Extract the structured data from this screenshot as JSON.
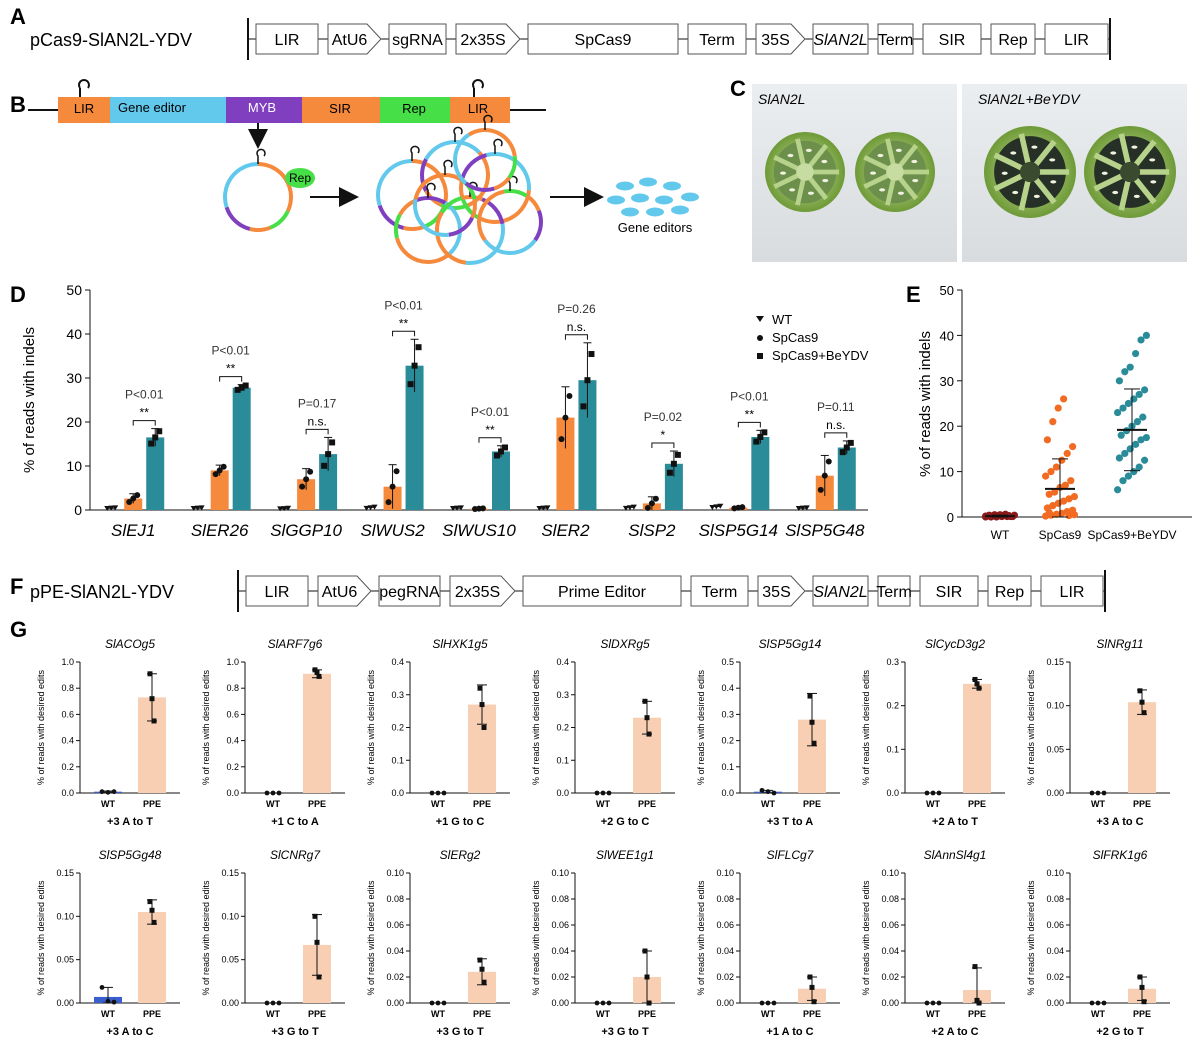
{
  "panel_letters": {
    "A": "A",
    "B": "B",
    "C": "C",
    "D": "D",
    "E": "E",
    "F": "F",
    "G": "G"
  },
  "colors": {
    "orange": "#f5893c",
    "teal": "#2b8c99",
    "peach": "#f9cfb3",
    "blue": "#3a5fcd",
    "cyan": "#62c9ec",
    "purple": "#7f3fbf",
    "green": "#47df47",
    "dark_red": "#8b1a1a"
  },
  "panel_a": {
    "title": "pCas9-SlAN2L-YDV",
    "blocks": [
      "LIR",
      "AtU6",
      "sgRNA",
      "2x35S",
      "SpCas9",
      "Term",
      "35S",
      "SlAN2L",
      "Term",
      "SIR",
      "Rep",
      "LIR"
    ]
  },
  "panel_f": {
    "title": "pPE-SlAN2L-YDV",
    "blocks": [
      "LIR",
      "AtU6",
      "pegRNA",
      "2x35S",
      "Prime Editor",
      "Term",
      "35S",
      "SlAN2L",
      "Term",
      "SIR",
      "Rep",
      "LIR"
    ]
  },
  "panel_b": {
    "segments": [
      "LIR",
      "Gene editor",
      "MYB",
      "SIR",
      "Rep",
      "LIR"
    ],
    "rep_label": "Rep",
    "product_label": "Gene editors"
  },
  "panel_c": {
    "left_label": "SlAN2L",
    "right_label": "SlAN2L+BeYDV"
  },
  "chart_data": [
    {
      "type": "bar",
      "id": "D",
      "ylabel": "% of reads with indels",
      "ylim": [
        0,
        50
      ],
      "yticks": [
        "0",
        "10",
        "20",
        "30",
        "40",
        "50"
      ],
      "categories": [
        "SlEJ1",
        "SlER26",
        "SlGGP10",
        "SlWUS2",
        "SlWUS10",
        "SlER2",
        "SlSP2",
        "SlSP5G14",
        "SlSP5G48"
      ],
      "series": [
        {
          "name": "WT",
          "values": [
            0.3,
            0.3,
            0.2,
            0.4,
            0.3,
            0.3,
            0.4,
            0.6,
            0.3
          ]
        },
        {
          "name": "SpCas9",
          "values": [
            2.6,
            9.0,
            7.0,
            5.3,
            0.3,
            21.0,
            1.5,
            0.5,
            7.8
          ]
        },
        {
          "name": "SpCas9+BeYDV",
          "values": [
            16.5,
            27.8,
            12.7,
            32.8,
            13.3,
            29.5,
            10.5,
            16.6,
            14.2
          ]
        }
      ],
      "errors": [
        [
          0.1,
          0.1,
          0.1,
          0.2,
          0.1,
          0.1,
          0.2,
          0.2,
          0.1
        ],
        [
          1.1,
          1.2,
          2.4,
          5.0,
          0.1,
          7.0,
          1.5,
          0.2,
          4.6
        ],
        [
          2.0,
          0.7,
          3.8,
          6.0,
          1.3,
          8.5,
          2.9,
          1.5,
          1.5
        ]
      ],
      "annotations": [
        {
          "p": "P<0.01",
          "sig": "**"
        },
        {
          "p": "P<0.01",
          "sig": "**"
        },
        {
          "p": "P=0.17",
          "sig": "n.s."
        },
        {
          "p": "P<0.01",
          "sig": "**"
        },
        {
          "p": "P<0.01",
          "sig": "**"
        },
        {
          "p": "P=0.26",
          "sig": "n.s."
        },
        {
          "p": "P=0.02",
          "sig": "*"
        },
        {
          "p": "P<0.01",
          "sig": "**"
        },
        {
          "p": "P=0.11",
          "sig": "n.s."
        }
      ],
      "legend": [
        "WT",
        "SpCas9",
        "SpCas9+BeYDV"
      ],
      "legend_position": "top-right"
    },
    {
      "type": "scatter",
      "id": "E",
      "ylabel": "% of reads with indels",
      "ylim": [
        0,
        50
      ],
      "yticks": [
        "0",
        "10",
        "20",
        "30",
        "40",
        "50"
      ],
      "categories": [
        "WT",
        "SpCas9",
        "SpCas9+BeYDV"
      ],
      "means": [
        0.2,
        6.2,
        19.2
      ],
      "sds": [
        0.2,
        6.6,
        9.0
      ],
      "points": [
        [
          0,
          0,
          0,
          0.1,
          0.1,
          0.1,
          0.2,
          0.2,
          0.2,
          0.3,
          0.3,
          0.4,
          0.4,
          0.5,
          0.5,
          0.6,
          0.1,
          0.2
        ],
        [
          0.2,
          0.4,
          0.6,
          0.8,
          1.2,
          1.5,
          2.0,
          2.5,
          3.0,
          3.5,
          4.0,
          4.5,
          5.0,
          5.5,
          6.5,
          7.0,
          8.0,
          9.0,
          10.0,
          11.0,
          12.5,
          14.0,
          15.5,
          17.0,
          21.0,
          24.0,
          26.0,
          0.3,
          0.5,
          1.0
        ],
        [
          6.0,
          8.0,
          9.0,
          10.0,
          11.0,
          12.5,
          13.0,
          14.0,
          15.0,
          16.0,
          17.0,
          17.5,
          18.0,
          19.0,
          20.0,
          21.0,
          22.0,
          23.0,
          24.0,
          25.0,
          26.0,
          27.0,
          28.0,
          30.0,
          32.0,
          33.0,
          36.0,
          39.0,
          40.0
        ]
      ]
    },
    {
      "type": "bar",
      "id": "G",
      "ylabel": "% of reads with desired edits",
      "categories": [
        "WT",
        "PPE"
      ],
      "subplots": [
        {
          "title": "SlACOg5",
          "xlabel": "+3 A to T",
          "ymax": 1.0,
          "ticks": [
            "0.0",
            "0.2",
            "0.4",
            "0.6",
            "0.8",
            "1.0"
          ],
          "wt": 0.01,
          "wt_err": 0.005,
          "ppe": 0.73,
          "ppe_err": 0.18,
          "wt_pts": [
            0.01,
            0.005,
            0.01
          ],
          "ppe_pts": [
            0.91,
            0.72,
            0.55
          ]
        },
        {
          "title": "SlARF7g6",
          "xlabel": "+1 C to A",
          "ymax": 1.0,
          "ticks": [
            "0.0",
            "0.2",
            "0.4",
            "0.6",
            "0.8",
            "1.0"
          ],
          "wt": 0.0,
          "wt_err": 0.0,
          "ppe": 0.91,
          "ppe_err": 0.03,
          "wt_pts": [
            0,
            0,
            0
          ],
          "ppe_pts": [
            0.94,
            0.92,
            0.89
          ]
        },
        {
          "title": "SlHXK1g5",
          "xlabel": "+1 G to C",
          "ymax": 0.4,
          "ticks": [
            "0.0",
            "0.1",
            "0.2",
            "0.3",
            "0.4"
          ],
          "wt": 0.0,
          "wt_err": 0.0,
          "ppe": 0.27,
          "ppe_err": 0.06,
          "wt_pts": [
            0,
            0,
            0
          ],
          "ppe_pts": [
            0.32,
            0.27,
            0.2
          ]
        },
        {
          "title": "SlDXRg5",
          "xlabel": "+2 G to C",
          "ymax": 0.4,
          "ticks": [
            "0.0",
            "0.1",
            "0.2",
            "0.3",
            "0.4"
          ],
          "wt": 0.0,
          "wt_err": 0.0,
          "ppe": 0.23,
          "ppe_err": 0.05,
          "wt_pts": [
            0,
            0,
            0
          ],
          "ppe_pts": [
            0.28,
            0.23,
            0.18
          ]
        },
        {
          "title": "SlSP5Gg14",
          "xlabel": "+3 T to A",
          "ymax": 0.5,
          "ticks": [
            "0.0",
            "0.1",
            "0.2",
            "0.3",
            "0.4",
            "0.5"
          ],
          "wt": 0.005,
          "wt_err": 0.005,
          "ppe": 0.28,
          "ppe_err": 0.1,
          "wt_pts": [
            0.01,
            0.005,
            0
          ],
          "ppe_pts": [
            0.37,
            0.27,
            0.19
          ]
        },
        {
          "title": "SlCycD3g2",
          "xlabel": "+2 A to T",
          "ymax": 0.3,
          "ticks": [
            "0.0",
            "0.1",
            "0.2",
            "0.3"
          ],
          "wt": 0.0,
          "wt_err": 0.0,
          "ppe": 0.25,
          "ppe_err": 0.01,
          "wt_pts": [
            0,
            0,
            0
          ],
          "ppe_pts": [
            0.26,
            0.25,
            0.24
          ]
        },
        {
          "title": "SlNRg11",
          "xlabel": "+3 A to C",
          "ymax": 0.15,
          "ticks": [
            "0.00",
            "0.05",
            "0.10",
            "0.15"
          ],
          "wt": 0.0,
          "wt_err": 0.0,
          "ppe": 0.104,
          "ppe_err": 0.014,
          "wt_pts": [
            0,
            0,
            0
          ],
          "ppe_pts": [
            0.117,
            0.104,
            0.092
          ]
        },
        {
          "title": "SlSP5Gg48",
          "xlabel": "+3 A to C",
          "ymax": 0.15,
          "ticks": [
            "0.00",
            "0.05",
            "0.10",
            "0.15"
          ],
          "wt": 0.007,
          "wt_err": 0.011,
          "ppe": 0.105,
          "ppe_err": 0.014,
          "wt_pts": [
            0.018,
            0.002,
            0.001
          ],
          "ppe_pts": [
            0.117,
            0.107,
            0.093
          ]
        },
        {
          "title": "SlCNRg7",
          "xlabel": "+3 G to T",
          "ymax": 0.15,
          "ticks": [
            "0.00",
            "0.05",
            "0.10",
            "0.15"
          ],
          "wt": 0.0,
          "wt_err": 0.0,
          "ppe": 0.067,
          "ppe_err": 0.035,
          "wt_pts": [
            0,
            0,
            0
          ],
          "ppe_pts": [
            0.1,
            0.07,
            0.03
          ]
        },
        {
          "title": "SlERg2",
          "xlabel": "+3 G to T",
          "ymax": 0.1,
          "ticks": [
            "0.00",
            "0.02",
            "0.04",
            "0.06",
            "0.08",
            "0.10"
          ],
          "wt": 0.0,
          "wt_err": 0.0,
          "ppe": 0.024,
          "ppe_err": 0.01,
          "wt_pts": [
            0,
            0,
            0
          ],
          "ppe_pts": [
            0.033,
            0.026,
            0.016
          ]
        },
        {
          "title": "SlWEE1g1",
          "xlabel": "+3 G to T",
          "ymax": 0.1,
          "ticks": [
            "0.00",
            "0.02",
            "0.04",
            "0.06",
            "0.08",
            "0.10"
          ],
          "wt": 0.0,
          "wt_err": 0.0,
          "ppe": 0.02,
          "ppe_err": 0.02,
          "wt_pts": [
            0,
            0,
            0
          ],
          "ppe_pts": [
            0.04,
            0.02,
            0.0
          ]
        },
        {
          "title": "SlFLCg7",
          "xlabel": "+1 A to C",
          "ymax": 0.1,
          "ticks": [
            "0.00",
            "0.02",
            "0.04",
            "0.06",
            "0.08",
            "0.10"
          ],
          "wt": 0.0,
          "wt_err": 0.0,
          "ppe": 0.011,
          "ppe_err": 0.009,
          "wt_pts": [
            0,
            0,
            0
          ],
          "ppe_pts": [
            0.02,
            0.012,
            0.001
          ]
        },
        {
          "title": "SlAnnSl4g1",
          "xlabel": "+2 A to C",
          "ymax": 0.1,
          "ticks": [
            "0.00",
            "0.02",
            "0.04",
            "0.06",
            "0.08",
            "0.10"
          ],
          "wt": 0.0,
          "wt_err": 0.0,
          "ppe": 0.01,
          "ppe_err": 0.017,
          "wt_pts": [
            0,
            0,
            0
          ],
          "ppe_pts": [
            0.028,
            0.002,
            0.0
          ]
        },
        {
          "title": "SlFRK1g6",
          "xlabel": "+2 G to T",
          "ymax": 0.1,
          "ticks": [
            "0.00",
            "0.02",
            "0.04",
            "0.06",
            "0.08",
            "0.10"
          ],
          "wt": 0.0,
          "wt_err": 0.0,
          "ppe": 0.011,
          "ppe_err": 0.009,
          "wt_pts": [
            0,
            0,
            0
          ],
          "ppe_pts": [
            0.02,
            0.012,
            0.001
          ]
        }
      ]
    }
  ]
}
